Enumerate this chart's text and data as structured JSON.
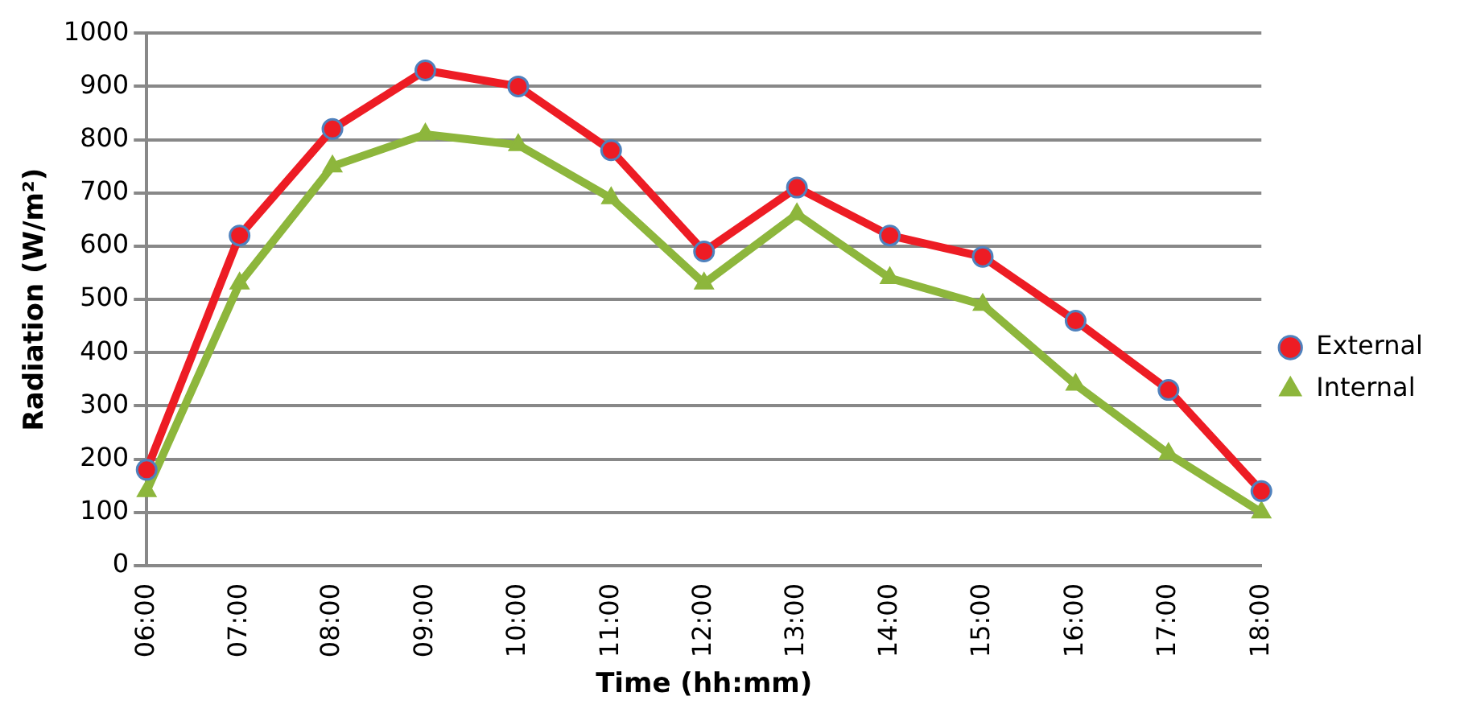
{
  "chart_data": {
    "type": "line",
    "xlabel": "Time (hh:mm)",
    "ylabel": "Radiation (W/m²)",
    "categories": [
      "06:00",
      "07:00",
      "08:00",
      "09:00",
      "10:00",
      "11:00",
      "12:00",
      "13:00",
      "14:00",
      "15:00",
      "16:00",
      "17:00",
      "18:00"
    ],
    "series": [
      {
        "name": "External",
        "color": "#ed1c24",
        "marker": "circle",
        "values": [
          180,
          620,
          820,
          930,
          900,
          780,
          590,
          710,
          620,
          580,
          460,
          330,
          140
        ]
      },
      {
        "name": "Internal",
        "color": "#8db63c",
        "marker": "triangle",
        "values": [
          140,
          530,
          750,
          810,
          790,
          690,
          530,
          660,
          540,
          490,
          340,
          210,
          100
        ]
      }
    ],
    "ylim": [
      0,
      1000
    ],
    "yticks": [
      0,
      100,
      200,
      300,
      400,
      500,
      600,
      700,
      800,
      900,
      1000
    ],
    "grid": "y",
    "legend": "right",
    "line_style": "solid"
  }
}
